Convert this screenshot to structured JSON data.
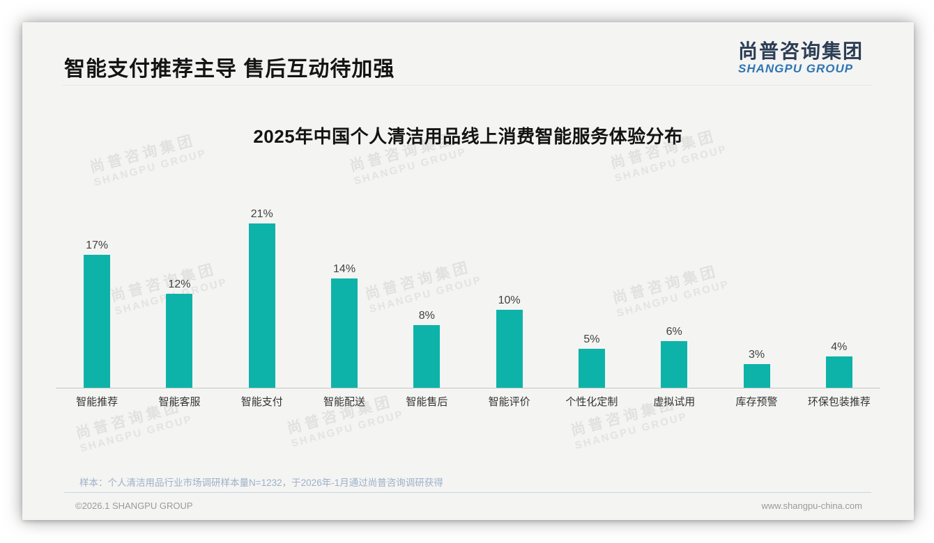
{
  "header": {
    "title": "智能支付推荐主导 售后互动待加强"
  },
  "logo": {
    "cn": "尚普咨询集团",
    "en": "SHANGPU GROUP"
  },
  "watermark": {
    "line1": "尚普咨询集团",
    "line2": "SHANGPU GROUP"
  },
  "chart_data": {
    "type": "bar",
    "title": "2025年中国个人清洁用品线上消费智能服务体验分布",
    "categories": [
      "智能推荐",
      "智能客服",
      "智能支付",
      "智能配送",
      "智能售后",
      "智能评价",
      "个性化定制",
      "虚拟试用",
      "库存预警",
      "环保包装推荐"
    ],
    "values": [
      17,
      12,
      21,
      14,
      8,
      10,
      5,
      6,
      3,
      4
    ],
    "labels": [
      "17%",
      "12%",
      "21%",
      "14%",
      "8%",
      "10%",
      "5%",
      "6%",
      "3%",
      "4%"
    ],
    "unit": "%",
    "bar_color": "#0db3a9",
    "xlabel": "",
    "ylabel": "",
    "ylim": [
      0,
      23
    ],
    "grid": false,
    "legend": false,
    "value_labels_shown": true
  },
  "note": "样本：个人清洁用品行业市场调研样本量N=1232，于2026年-1月通过尚普咨询调研获得",
  "footer": {
    "left": "©2026.1 SHANGPU GROUP",
    "right": "www.shangpu-china.com"
  }
}
